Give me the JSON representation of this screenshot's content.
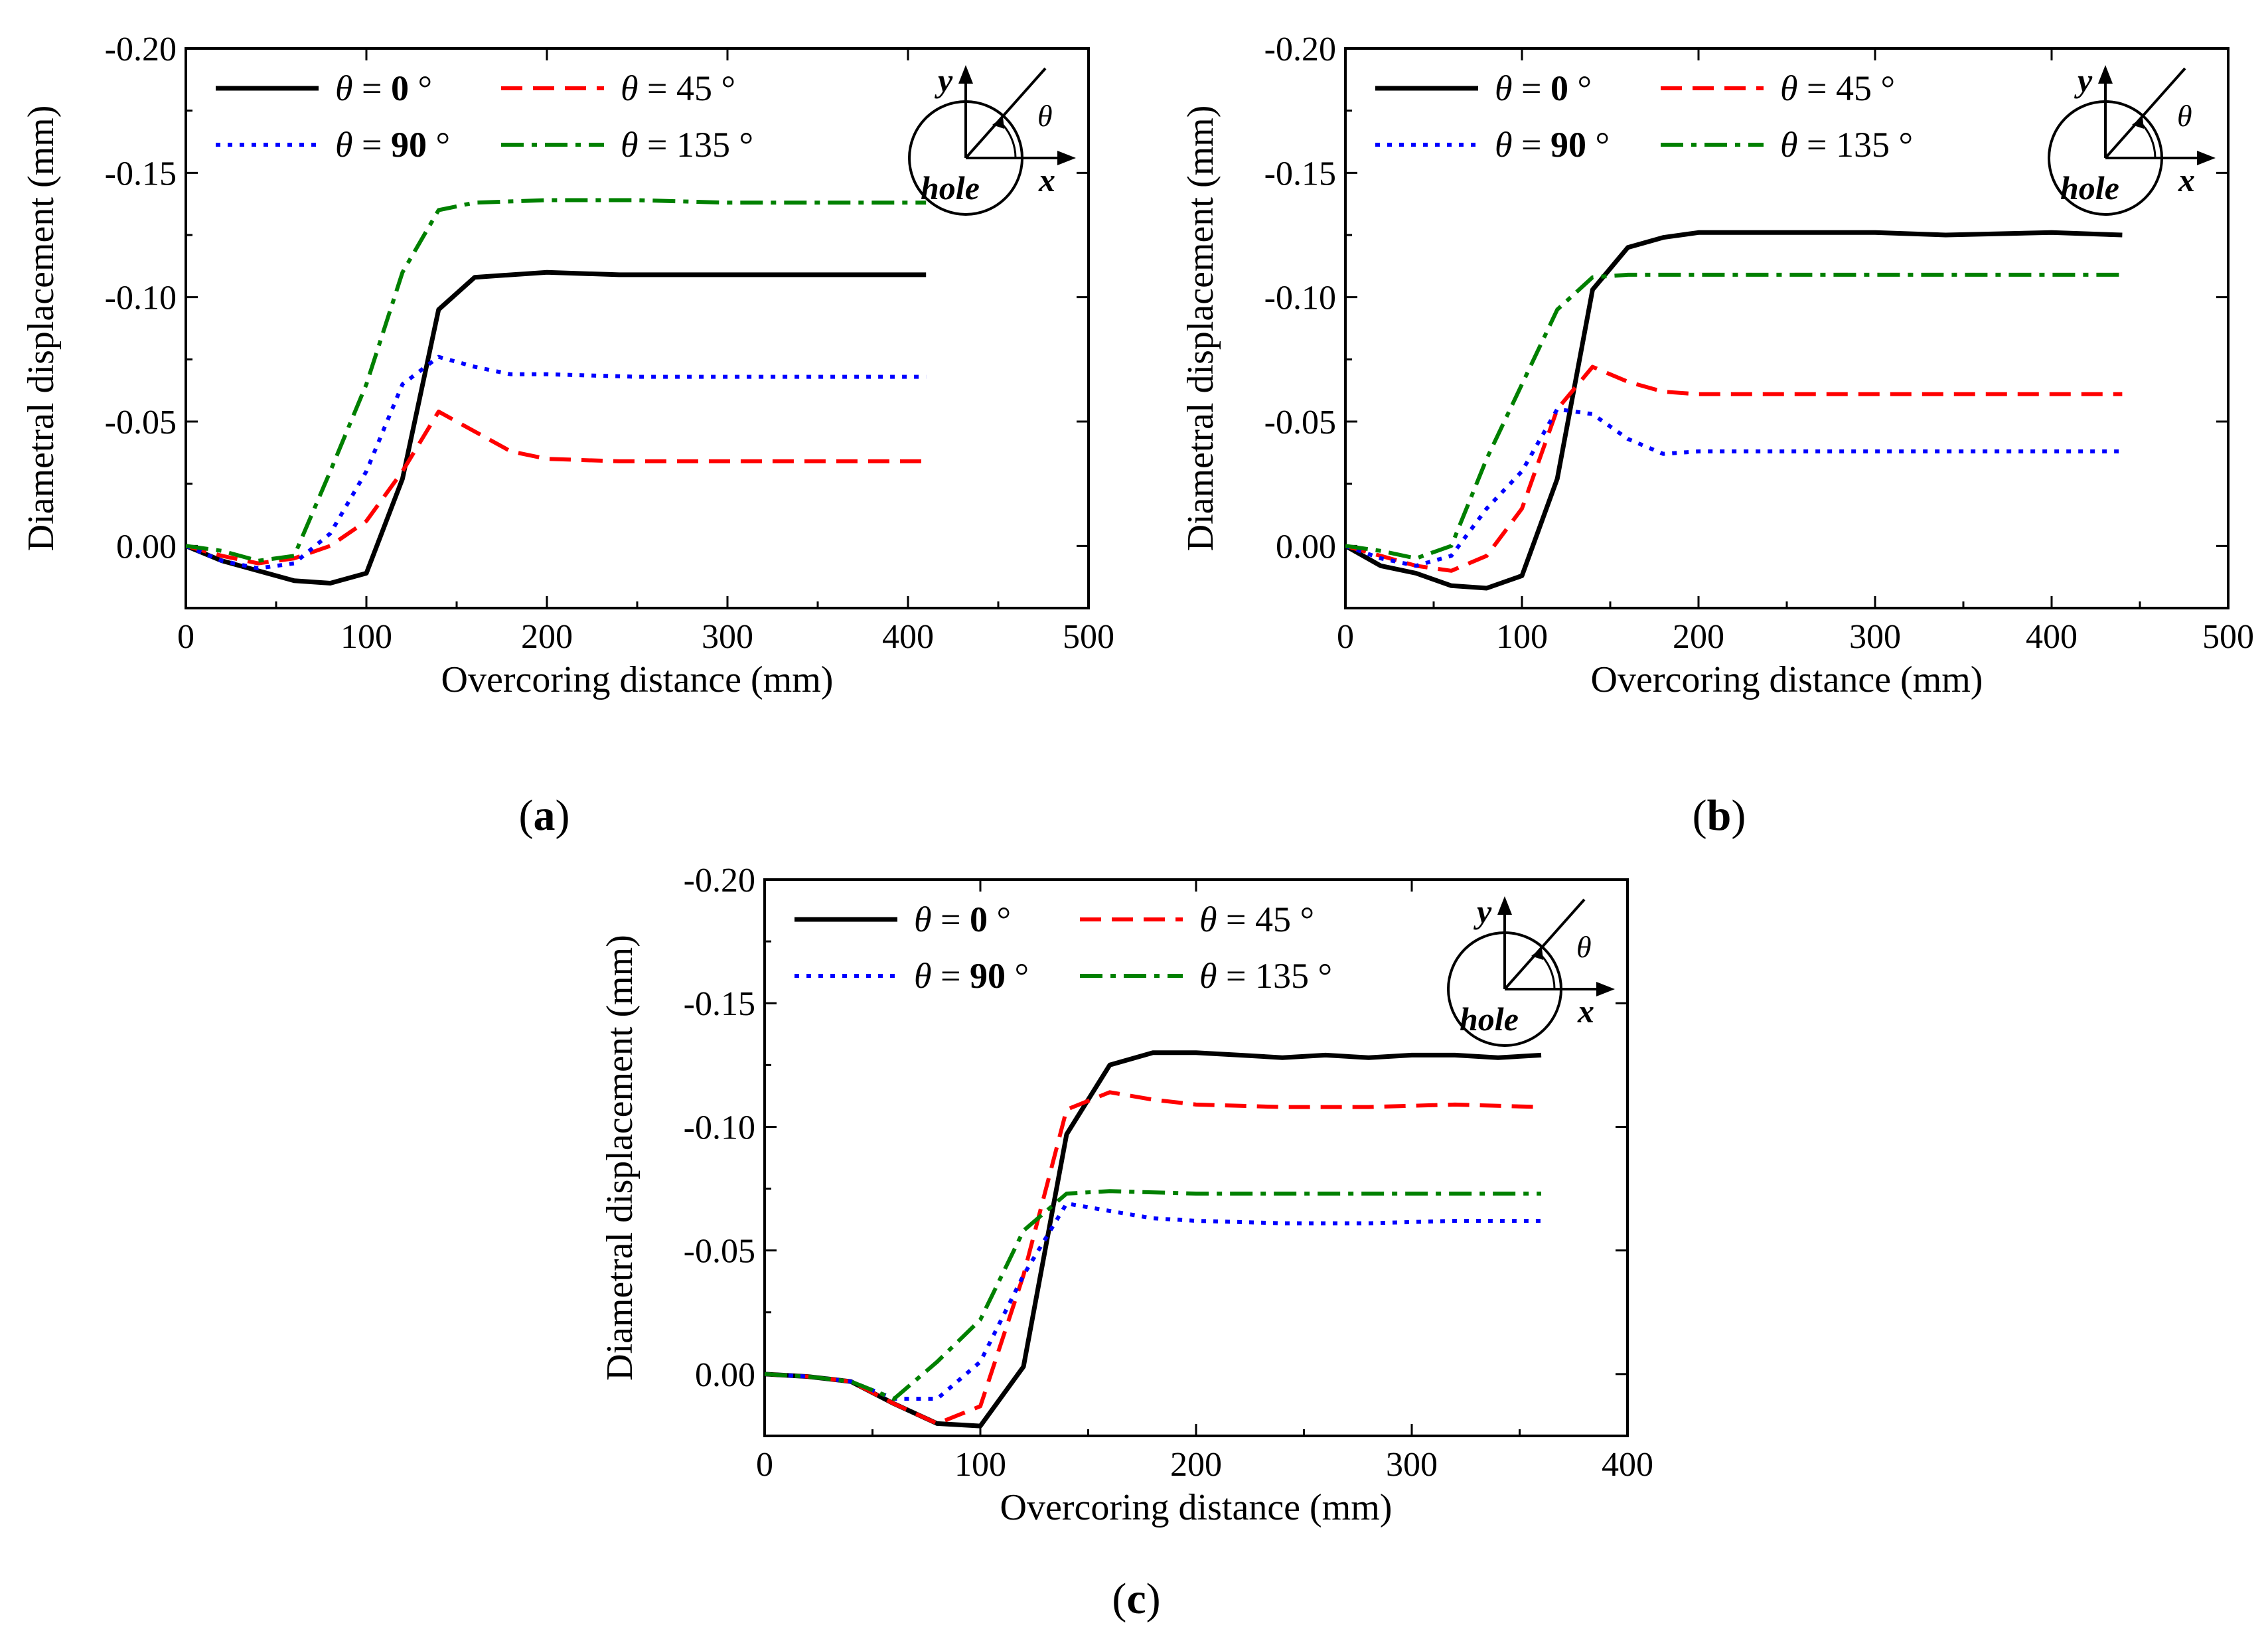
{
  "colors": {
    "theta_0": "#000000",
    "theta_45": "#ff0000",
    "theta_90": "#0000ff",
    "theta_135": "#008000"
  },
  "inset": {
    "y_label": "y",
    "x_label": "x",
    "hole_label": "hole",
    "theta_label": "θ"
  },
  "legend": {
    "theta_symbol": "θ",
    "eq": " = ",
    "deg": " °"
  },
  "chart_data": [
    {
      "panel": "(a)",
      "panel_letter": "a",
      "type": "line",
      "xlabel": "Overcoring distance (mm)",
      "ylabel": "Diametral displacement (mm)",
      "xlim": [
        0,
        500
      ],
      "ylim": [
        0.025,
        -0.2
      ],
      "x_ticks": [
        "0",
        "100",
        "200",
        "300",
        "400",
        "500"
      ],
      "y_ticks": [
        "0.00",
        "-0.05",
        "-0.10",
        "-0.15",
        "-0.20"
      ],
      "x_tick_values": [
        0,
        100,
        200,
        300,
        400,
        500
      ],
      "y_tick_values": [
        0,
        -0.05,
        -0.1,
        -0.15,
        -0.2
      ],
      "series": [
        {
          "name_angle": "0",
          "bold": true,
          "color": "#000000",
          "dash": "solid",
          "x": [
            0,
            20,
            40,
            60,
            80,
            100,
            120,
            140,
            160,
            200,
            240,
            280,
            320,
            360,
            410
          ],
          "y": [
            0,
            0.006,
            0.01,
            0.014,
            0.015,
            0.011,
            -0.027,
            -0.095,
            -0.108,
            -0.11,
            -0.109,
            -0.109,
            -0.109,
            -0.109,
            -0.109
          ]
        },
        {
          "name_angle": "45",
          "bold": false,
          "color": "#ff0000",
          "dash": "dash",
          "x": [
            0,
            20,
            40,
            60,
            80,
            100,
            120,
            140,
            160,
            180,
            200,
            240,
            300,
            360,
            410
          ],
          "y": [
            0,
            0.004,
            0.007,
            0.005,
            0.0,
            -0.01,
            -0.03,
            -0.054,
            -0.046,
            -0.038,
            -0.035,
            -0.034,
            -0.034,
            -0.034,
            -0.034
          ]
        },
        {
          "name_angle": "90",
          "bold": true,
          "color": "#0000ff",
          "dash": "dot",
          "x": [
            0,
            20,
            40,
            60,
            80,
            100,
            120,
            140,
            160,
            180,
            200,
            250,
            300,
            360,
            410
          ],
          "y": [
            0,
            0.006,
            0.009,
            0.007,
            -0.005,
            -0.03,
            -0.065,
            -0.076,
            -0.072,
            -0.069,
            -0.069,
            -0.068,
            -0.068,
            -0.068,
            -0.068
          ]
        },
        {
          "name_angle": "135",
          "bold": false,
          "color": "#008000",
          "dash": "dashdot",
          "x": [
            0,
            20,
            40,
            60,
            80,
            100,
            120,
            140,
            160,
            200,
            250,
            300,
            360,
            410
          ],
          "y": [
            0,
            0.002,
            0.006,
            0.004,
            -0.03,
            -0.065,
            -0.11,
            -0.135,
            -0.138,
            -0.139,
            -0.139,
            -0.138,
            -0.138,
            -0.138
          ]
        }
      ]
    },
    {
      "panel": "(b)",
      "panel_letter": "b",
      "type": "line",
      "xlabel": "Overcoring distance (mm)",
      "ylabel": "Diametral displacement (mm)",
      "xlim": [
        0,
        500
      ],
      "ylim": [
        0.025,
        -0.2
      ],
      "x_ticks": [
        "0",
        "100",
        "200",
        "300",
        "400",
        "500"
      ],
      "y_ticks": [
        "0.00",
        "-0.05",
        "-0.10",
        "-0.15",
        "-0.20"
      ],
      "x_tick_values": [
        0,
        100,
        200,
        300,
        400,
        500
      ],
      "y_tick_values": [
        0,
        -0.05,
        -0.1,
        -0.15,
        -0.2
      ],
      "series": [
        {
          "name_angle": "0",
          "bold": true,
          "color": "#000000",
          "dash": "solid",
          "x": [
            0,
            20,
            40,
            60,
            80,
            100,
            120,
            140,
            160,
            180,
            200,
            220,
            260,
            300,
            340,
            400,
            440
          ],
          "y": [
            0,
            0.008,
            0.011,
            0.016,
            0.017,
            0.012,
            -0.027,
            -0.103,
            -0.12,
            -0.124,
            -0.126,
            -0.126,
            -0.126,
            -0.126,
            -0.125,
            -0.126,
            -0.125
          ]
        },
        {
          "name_angle": "45",
          "bold": false,
          "color": "#ff0000",
          "dash": "dash",
          "x": [
            0,
            20,
            40,
            60,
            80,
            100,
            120,
            140,
            160,
            180,
            200,
            250,
            300,
            350,
            400,
            440
          ],
          "y": [
            0,
            0.004,
            0.008,
            0.01,
            0.004,
            -0.015,
            -0.055,
            -0.072,
            -0.066,
            -0.062,
            -0.061,
            -0.061,
            -0.061,
            -0.061,
            -0.061,
            -0.061
          ]
        },
        {
          "name_angle": "90",
          "bold": true,
          "color": "#0000ff",
          "dash": "dot",
          "x": [
            0,
            20,
            40,
            60,
            80,
            100,
            120,
            140,
            160,
            180,
            200,
            250,
            300,
            350,
            400,
            440
          ],
          "y": [
            0,
            0.005,
            0.008,
            0.004,
            -0.015,
            -0.03,
            -0.055,
            -0.053,
            -0.043,
            -0.037,
            -0.038,
            -0.038,
            -0.038,
            -0.038,
            -0.038,
            -0.038
          ]
        },
        {
          "name_angle": "135",
          "bold": false,
          "color": "#008000",
          "dash": "dashdot",
          "x": [
            0,
            20,
            40,
            60,
            80,
            100,
            120,
            140,
            160,
            200,
            250,
            300,
            350,
            400,
            440
          ],
          "y": [
            0,
            0.002,
            0.005,
            0.0,
            -0.035,
            -0.065,
            -0.095,
            -0.108,
            -0.109,
            -0.109,
            -0.109,
            -0.109,
            -0.109,
            -0.109,
            -0.109
          ]
        }
      ]
    },
    {
      "panel": "(c)",
      "panel_letter": "c",
      "type": "line",
      "xlabel": "Overcoring distance (mm)",
      "ylabel": "Diametral displacement (mm)",
      "xlim": [
        0,
        400
      ],
      "ylim": [
        0.025,
        -0.2
      ],
      "x_ticks": [
        "0",
        "100",
        "200",
        "300",
        "400"
      ],
      "y_ticks": [
        "0.00",
        "-0.05",
        "-0.10",
        "-0.15",
        "-0.20"
      ],
      "x_tick_values": [
        0,
        100,
        200,
        300,
        400
      ],
      "y_tick_values": [
        0,
        -0.05,
        -0.1,
        -0.15,
        -0.2
      ],
      "series": [
        {
          "name_angle": "0",
          "bold": true,
          "color": "#000000",
          "dash": "solid",
          "x": [
            0,
            20,
            40,
            60,
            80,
            100,
            120,
            140,
            160,
            180,
            200,
            220,
            240,
            260,
            280,
            300,
            320,
            340,
            360
          ],
          "y": [
            0,
            0.001,
            0.003,
            0.012,
            0.02,
            0.021,
            -0.003,
            -0.097,
            -0.125,
            -0.13,
            -0.13,
            -0.129,
            -0.128,
            -0.129,
            -0.128,
            -0.129,
            -0.129,
            -0.128,
            -0.129
          ]
        },
        {
          "name_angle": "45",
          "bold": false,
          "color": "#ff0000",
          "dash": "dash",
          "x": [
            0,
            20,
            40,
            60,
            80,
            100,
            120,
            140,
            160,
            180,
            200,
            240,
            280,
            320,
            360
          ],
          "y": [
            0,
            0.001,
            0.003,
            0.012,
            0.02,
            0.013,
            -0.04,
            -0.107,
            -0.114,
            -0.111,
            -0.109,
            -0.108,
            -0.108,
            -0.109,
            -0.108
          ]
        },
        {
          "name_angle": "90",
          "bold": true,
          "color": "#0000ff",
          "dash": "dot",
          "x": [
            0,
            20,
            40,
            60,
            80,
            100,
            120,
            140,
            160,
            180,
            200,
            240,
            280,
            320,
            360
          ],
          "y": [
            0,
            0.001,
            0.003,
            0.01,
            0.01,
            -0.005,
            -0.04,
            -0.069,
            -0.066,
            -0.063,
            -0.062,
            -0.061,
            -0.061,
            -0.062,
            -0.062
          ]
        },
        {
          "name_angle": "135",
          "bold": false,
          "color": "#008000",
          "dash": "dashdot",
          "x": [
            0,
            20,
            40,
            60,
            80,
            100,
            120,
            140,
            160,
            200,
            240,
            280,
            320,
            360
          ],
          "y": [
            0,
            0.001,
            0.003,
            0.01,
            -0.005,
            -0.022,
            -0.058,
            -0.073,
            -0.074,
            -0.073,
            -0.073,
            -0.073,
            -0.073,
            -0.073
          ]
        }
      ]
    }
  ]
}
